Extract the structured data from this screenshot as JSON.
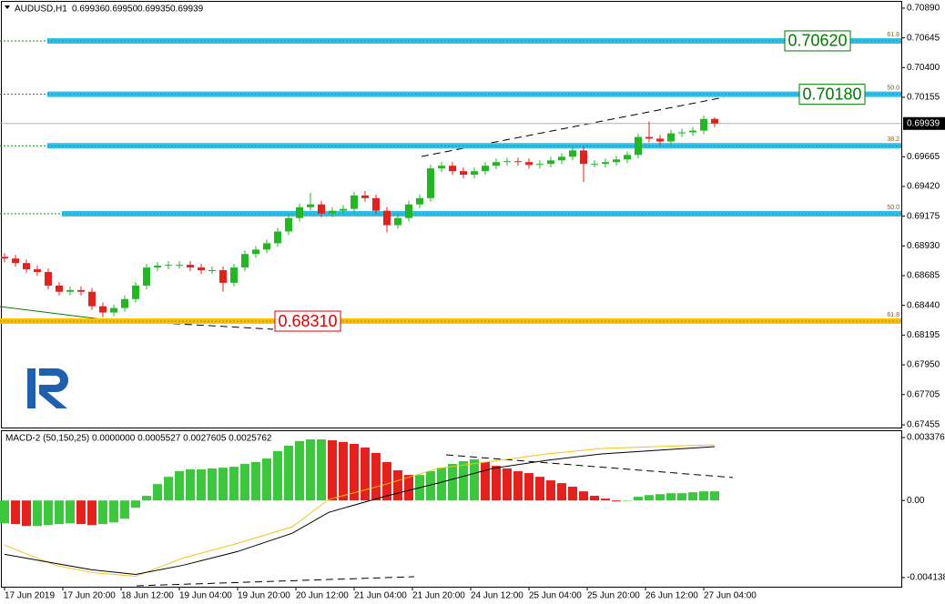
{
  "header": {
    "symbol": "AUDUSD,H1",
    "quote": [
      "0.69936",
      "0.69950",
      "0.69935",
      "0.69939"
    ]
  },
  "chart_data": [
    {
      "type": "candlestick",
      "x": [
        0,
        3,
        6,
        9,
        12,
        15,
        18,
        21,
        24,
        27,
        30,
        33,
        36,
        39,
        42,
        45,
        48,
        51,
        54,
        57,
        60,
        63,
        66,
        69,
        72,
        75,
        78,
        81,
        84,
        87,
        90,
        93,
        96,
        99,
        102,
        105,
        108,
        111,
        114,
        117,
        120,
        123,
        126,
        129,
        132,
        135,
        138,
        141,
        144,
        147,
        150,
        153,
        156,
        159,
        162,
        165,
        168,
        171,
        174,
        177,
        180,
        183,
        186,
        189,
        192,
        195
      ],
      "open": [
        0.6884,
        0.68826,
        0.68789,
        0.68737,
        0.68715,
        0.68603,
        0.68552,
        0.68566,
        0.68552,
        0.68433,
        0.68381,
        0.68418,
        0.68492,
        0.68603,
        0.68752,
        0.68767,
        0.68774,
        0.68774,
        0.68752,
        0.6873,
        0.6873,
        0.68626,
        0.68752,
        0.68863,
        0.689,
        0.68952,
        0.69049,
        0.6916,
        0.69249,
        0.69272,
        0.69197,
        0.6922,
        0.69235,
        0.69346,
        0.69324,
        0.6922,
        0.69101,
        0.6916,
        0.69272,
        0.69324,
        0.69569,
        0.69591,
        0.69546,
        0.69517,
        0.69546,
        0.69591,
        0.69621,
        0.69628,
        0.69621,
        0.69598,
        0.69606,
        0.69635,
        0.69665,
        0.69717,
        0.69606,
        0.69606,
        0.69621,
        0.69643,
        0.6968,
        0.69828,
        0.69814,
        0.69791,
        0.69858,
        0.69866,
        0.6988,
        0.69977
      ],
      "high": [
        0.6887,
        0.68856,
        0.68819,
        0.68767,
        0.68745,
        0.68633,
        0.68596,
        0.68596,
        0.68582,
        0.68463,
        0.68448,
        0.68522,
        0.68633,
        0.68782,
        0.68797,
        0.68804,
        0.68804,
        0.68804,
        0.68782,
        0.6876,
        0.6876,
        0.68782,
        0.68893,
        0.6893,
        0.68982,
        0.69079,
        0.6919,
        0.69279,
        0.69368,
        0.69302,
        0.6925,
        0.69265,
        0.69376,
        0.69383,
        0.69354,
        0.6925,
        0.6919,
        0.69302,
        0.69354,
        0.69599,
        0.69621,
        0.69621,
        0.69576,
        0.69576,
        0.69621,
        0.69651,
        0.69658,
        0.69658,
        0.69651,
        0.69636,
        0.69665,
        0.69695,
        0.69747,
        0.69747,
        0.69636,
        0.69651,
        0.69673,
        0.6971,
        0.69858,
        0.69955,
        0.69844,
        0.69888,
        0.69896,
        0.6991,
        0.70007,
        0.6999
      ],
      "low": [
        0.68796,
        0.68759,
        0.68707,
        0.68685,
        0.68573,
        0.68522,
        0.68522,
        0.68522,
        0.68403,
        0.68344,
        0.68351,
        0.68388,
        0.68462,
        0.68573,
        0.68722,
        0.68737,
        0.68744,
        0.68722,
        0.687,
        0.687,
        0.68552,
        0.68596,
        0.68722,
        0.68833,
        0.6887,
        0.68922,
        0.69019,
        0.6913,
        0.69219,
        0.69167,
        0.69167,
        0.6919,
        0.69205,
        0.69294,
        0.6919,
        0.69041,
        0.69071,
        0.6913,
        0.69242,
        0.69294,
        0.69539,
        0.69516,
        0.69487,
        0.69487,
        0.69516,
        0.69561,
        0.69591,
        0.69591,
        0.69568,
        0.69568,
        0.69576,
        0.69605,
        0.69635,
        0.69457,
        0.69576,
        0.69576,
        0.69591,
        0.69613,
        0.6965,
        0.69784,
        0.69761,
        0.69761,
        0.69828,
        0.69836,
        0.6985,
        0.69909
      ],
      "close": [
        0.68826,
        0.68789,
        0.68737,
        0.68715,
        0.68603,
        0.68552,
        0.68566,
        0.68552,
        0.68433,
        0.68381,
        0.68418,
        0.68492,
        0.68603,
        0.68752,
        0.68767,
        0.68774,
        0.68774,
        0.68752,
        0.6873,
        0.6873,
        0.68626,
        0.68752,
        0.68863,
        0.689,
        0.68952,
        0.69049,
        0.6916,
        0.69249,
        0.69272,
        0.69197,
        0.6922,
        0.69235,
        0.69346,
        0.69324,
        0.6922,
        0.69101,
        0.6916,
        0.69272,
        0.69324,
        0.69569,
        0.69591,
        0.69546,
        0.69517,
        0.69546,
        0.69591,
        0.69621,
        0.69628,
        0.69621,
        0.69598,
        0.69606,
        0.69635,
        0.69665,
        0.69717,
        0.69606,
        0.69606,
        0.69621,
        0.69643,
        0.6968,
        0.69828,
        0.69814,
        0.69791,
        0.69858,
        0.69866,
        0.6988,
        0.69977,
        0.69939
      ],
      "up_color": "#22b822",
      "down_color": "#e8201c",
      "xlim": [
        -1.25,
        246.25
      ],
      "ylim": [
        0.67433,
        0.70942
      ],
      "xticks": [
        {
          "value": 0,
          "label": "17 Jun 2019"
        },
        {
          "value": 16,
          "label": "17 Jun 20:00"
        },
        {
          "value": 32,
          "label": "18 Jun 12:00"
        },
        {
          "value": 48,
          "label": "19 Jun 04:00"
        },
        {
          "value": 64,
          "label": "19 Jun 20:00"
        },
        {
          "value": 80,
          "label": "20 Jun 12:00"
        },
        {
          "value": 96,
          "label": "21 Jun 04:00"
        },
        {
          "value": 112,
          "label": "21 Jun 20:00"
        },
        {
          "value": 128,
          "label": "24 Jun 12:00"
        },
        {
          "value": 144,
          "label": "25 Jun 04:00"
        },
        {
          "value": 160,
          "label": "25 Jun 20:00"
        },
        {
          "value": 176,
          "label": "26 Jun 12:00"
        },
        {
          "value": 192,
          "label": "27 Jun 04:00"
        }
      ],
      "yticks": [
        {
          "value": 0.7089,
          "label": "0.70890"
        },
        {
          "value": 0.70645,
          "label": "0.70645"
        },
        {
          "value": 0.704,
          "label": "0.70400"
        },
        {
          "value": 0.70155,
          "label": "0.70155"
        },
        {
          "value": 0.69665,
          "label": "0.69665"
        },
        {
          "value": 0.6942,
          "label": "0.69420"
        },
        {
          "value": 0.69175,
          "label": "0.69175"
        },
        {
          "value": 0.6893,
          "label": "0.68930"
        },
        {
          "value": 0.68685,
          "label": "0.68685"
        },
        {
          "value": 0.6844,
          "label": "0.68440"
        },
        {
          "value": 0.68195,
          "label": "0.68195"
        },
        {
          "value": 0.6795,
          "label": "0.67950"
        },
        {
          "value": 0.67705,
          "label": "0.67705"
        },
        {
          "value": 0.67455,
          "label": "0.67455"
        }
      ],
      "last_price": {
        "value": 0.69939,
        "label": "0.69939"
      },
      "levels": [
        {
          "value": 0.7062,
          "label": "0.70620",
          "fib": "61.8",
          "color": "#2ec0e6",
          "label_color": "#007a00"
        },
        {
          "value": 0.7018,
          "label": "0.70180",
          "fib": "50.0",
          "color": "#2ec0e6",
          "label_color": "#007a00"
        },
        {
          "value": 0.69755,
          "fib": "38.2",
          "color": "#2ec0e6"
        },
        {
          "value": 0.69195,
          "fib": "50.0",
          "color": "#2ec0e6"
        },
        {
          "value": 0.6831,
          "label": "0.68310",
          "fib": "61.8",
          "color": "#ffc000",
          "label_color": "#e00000"
        }
      ]
    },
    {
      "type": "macd",
      "title": "MACD-2 (50,150,25) 0.0000000 0.0005527 0.0027605 0.0025762",
      "x": [
        0,
        3,
        6,
        9,
        12,
        15,
        18,
        21,
        24,
        27,
        30,
        33,
        36,
        39,
        42,
        45,
        48,
        51,
        54,
        57,
        60,
        63,
        66,
        69,
        72,
        75,
        78,
        81,
        84,
        87,
        90,
        93,
        96,
        99,
        102,
        105,
        108,
        111,
        114,
        117,
        120,
        123,
        126,
        129,
        132,
        135,
        138,
        141,
        144,
        147,
        150,
        153,
        156,
        159,
        162,
        165,
        168,
        171,
        174,
        177,
        180,
        183,
        186,
        189,
        192,
        195
      ],
      "values": [
        -0.00123,
        -0.00127,
        -0.00137,
        -0.00137,
        -0.00132,
        -0.00127,
        -0.00123,
        -0.00127,
        -0.00132,
        -0.00127,
        -0.00118,
        -0.00098,
        -0.00039,
        0.00025,
        0.00088,
        0.00127,
        0.00157,
        0.00167,
        0.00167,
        0.00172,
        0.00176,
        0.00181,
        0.00196,
        0.00206,
        0.00225,
        0.00265,
        0.00294,
        0.00319,
        0.00328,
        0.00328,
        0.00323,
        0.00314,
        0.00304,
        0.00284,
        0.00255,
        0.00206,
        0.00162,
        0.00137,
        0.00137,
        0.00157,
        0.00176,
        0.00196,
        0.00211,
        0.00221,
        0.00206,
        0.00186,
        0.00172,
        0.00157,
        0.00147,
        0.00127,
        0.00108,
        0.00093,
        0.00074,
        0.00049,
        0.00025,
        0.0001,
        -5e-05,
        0,
        0.0002,
        0.00029,
        0.00034,
        0.00039,
        0.00039,
        0.00044,
        0.00049,
        0.00049
      ],
      "up_color": "#3cc83c",
      "down_color": "#e8201c",
      "lines": [
        {
          "color": "#f0c419",
          "x": [
            0,
            14,
            24,
            36,
            49,
            64,
            79,
            89,
            104,
            119,
            134,
            149,
            164,
            195
          ],
          "values": [
            -0.0024,
            -0.00348,
            -0.00387,
            -0.00407,
            -0.00309,
            -0.0023,
            -0.00142,
            5e-05,
            0.00083,
            0.00172,
            0.00211,
            0.0025,
            0.00279,
            0.00299
          ]
        },
        {
          "color": "#000000",
          "x": [
            0,
            14,
            24,
            36,
            49,
            64,
            79,
            89,
            104,
            119,
            134,
            149,
            164,
            195
          ],
          "values": [
            -0.00289,
            -0.00338,
            -0.00372,
            -0.00397,
            -0.00348,
            -0.00274,
            -0.00176,
            -0.00064,
            0.0002,
            0.00093,
            0.00172,
            0.00216,
            0.0025,
            0.00289
          ]
        }
      ],
      "ylim": [
        -0.00463,
        0.00372
      ],
      "yticks": [
        0.0033762,
        {
          "value": 0,
          "label": "0.00"
        },
        -0.004138
      ]
    }
  ]
}
